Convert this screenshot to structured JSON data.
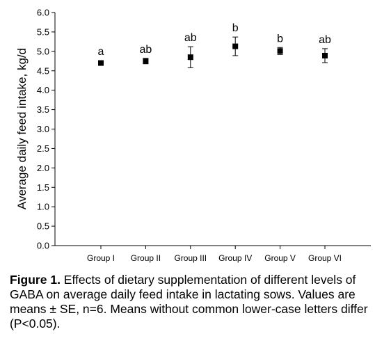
{
  "chart_data": {
    "type": "scatter",
    "categories": [
      "Group I",
      "Group II",
      "Group III",
      "Group IV",
      "Group V",
      "Group VI"
    ],
    "values": [
      4.7,
      4.75,
      4.85,
      5.13,
      5.01,
      4.89
    ],
    "errors": [
      0.06,
      0.07,
      0.27,
      0.24,
      0.09,
      0.18
    ],
    "letters": [
      "a",
      "ab",
      "ab",
      "b",
      "b",
      "ab"
    ],
    "ylabel": "Average daily feed intake, kg/d",
    "ylim": [
      0.0,
      6.0
    ],
    "yticks": [
      "0.0",
      "0.5",
      "1.0",
      "1.5",
      "2.0",
      "2.5",
      "3.0",
      "3.5",
      "4.0",
      "4.5",
      "5.0",
      "5.5",
      "6.0"
    ],
    "grid": false,
    "legend": "none",
    "marker": "filled-square",
    "marker_color": "#000000"
  },
  "caption": {
    "label": "Figure 1.",
    "text": " Effects of dietary supplementation of different levels of GABA on average daily feed intake in lactating sows. Values are means ± SE, n=6. Means without common lower-case letters differ (P<0.05)."
  }
}
